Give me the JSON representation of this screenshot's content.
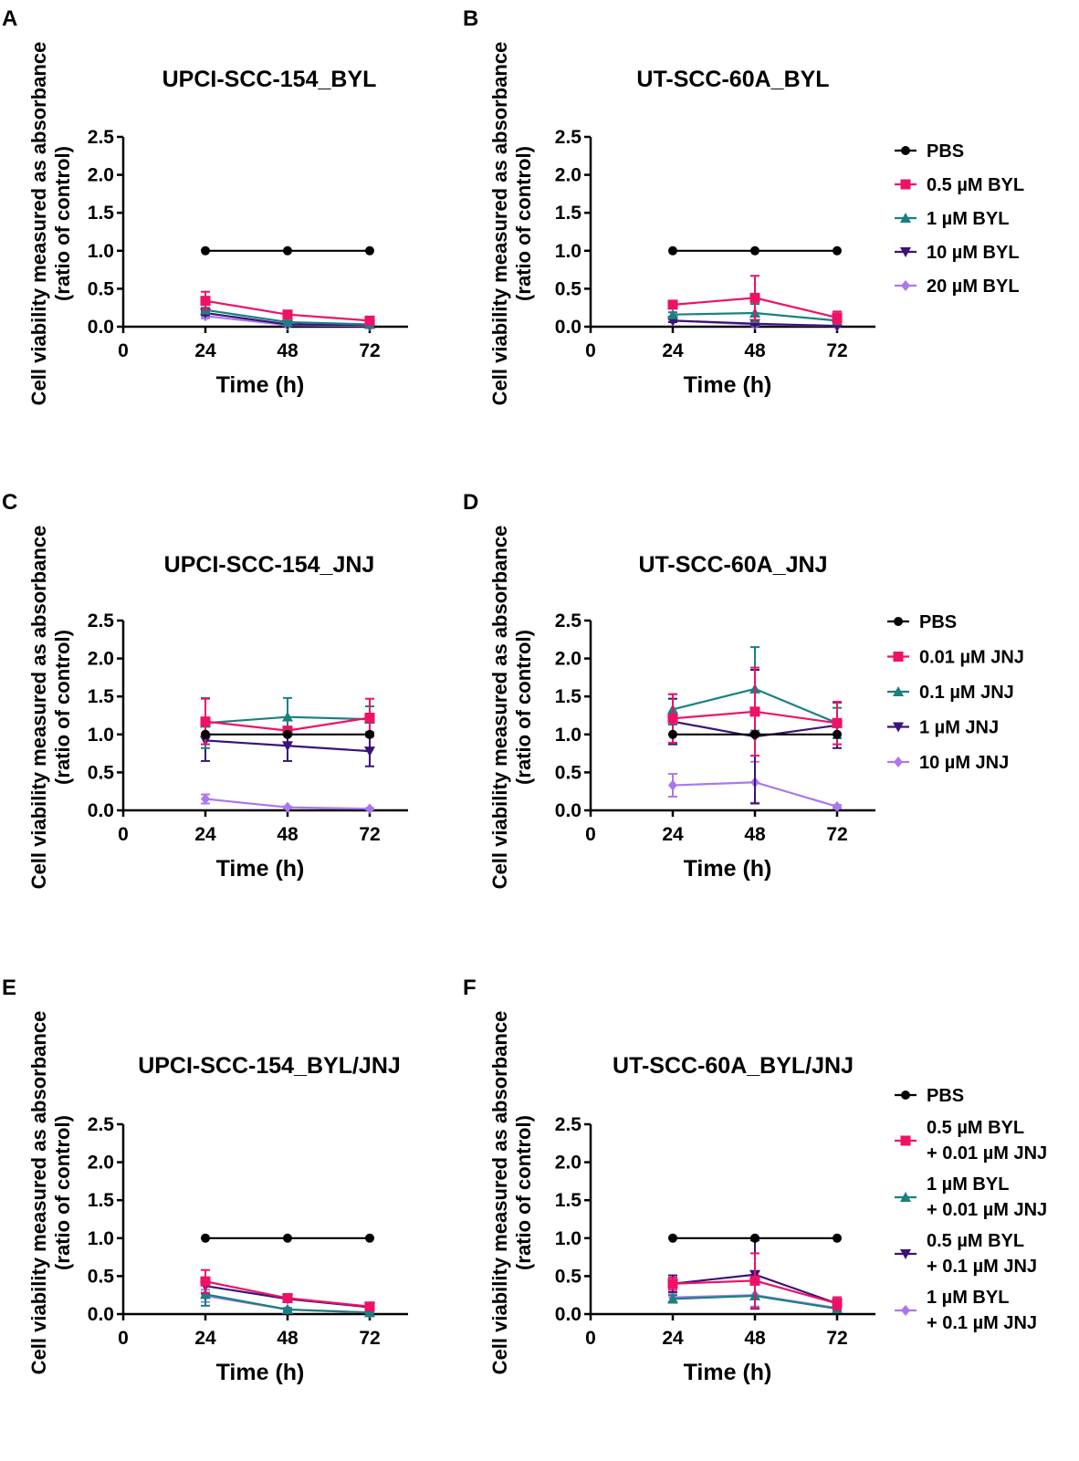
{
  "figure": {
    "ylabel_line1": "Cell viability measured as absorbance",
    "ylabel_line2": "(ratio of control)",
    "xlabel": "Time (h)",
    "x_ticks": [
      "0",
      "24",
      "48",
      "72"
    ],
    "y_ticks": [
      "0.0",
      "0.5",
      "1.0",
      "1.5",
      "2.0",
      "2.5"
    ]
  },
  "chart_data": [
    {
      "panel": "A",
      "type": "line",
      "title": "UPCI-SCC-154_BYL",
      "xlabel": "Time (h)",
      "ylabel": "Cell viability measured as absorbance (ratio of control)",
      "x": [
        24,
        48,
        72
      ],
      "xlim": [
        0,
        80
      ],
      "ylim": [
        0,
        2.5
      ],
      "series": [
        {
          "name": "PBS",
          "color": "#000000",
          "marker": "circle",
          "values": [
            1.0,
            1.0,
            1.0
          ],
          "errors": [
            0,
            0,
            0
          ]
        },
        {
          "name": "0.5 µM BYL",
          "color": "#ee1166",
          "marker": "square",
          "values": [
            0.34,
            0.16,
            0.08
          ],
          "errors": [
            0.12,
            0.02,
            0.02
          ]
        },
        {
          "name": "1 µM BYL",
          "color": "#1a8080",
          "marker": "triangle-up",
          "values": [
            0.22,
            0.06,
            0.03
          ],
          "errors": [
            0.03,
            0.01,
            0.01
          ]
        },
        {
          "name": "10 µM BYL",
          "color": "#3a1378",
          "marker": "triangle-down",
          "values": [
            0.18,
            0.03,
            0.02
          ],
          "errors": [
            0.03,
            0.01,
            0.01
          ]
        },
        {
          "name": "20 µM BYL",
          "color": "#aa77ee",
          "marker": "diamond",
          "values": [
            0.14,
            0.02,
            0.01
          ],
          "errors": [
            0.03,
            0.01,
            0.01
          ]
        }
      ],
      "legend": false
    },
    {
      "panel": "B",
      "type": "line",
      "title": "UT-SCC-60A_BYL",
      "xlabel": "Time (h)",
      "ylabel": "Cell viability measured as absorbance (ratio of control)",
      "x": [
        24,
        48,
        72
      ],
      "xlim": [
        0,
        80
      ],
      "ylim": [
        0,
        2.5
      ],
      "series": [
        {
          "name": "PBS",
          "color": "#000000",
          "marker": "circle",
          "values": [
            1.0,
            1.0,
            1.0
          ],
          "errors": [
            0,
            0,
            0
          ]
        },
        {
          "name": "0.5 µM BYL",
          "color": "#ee1166",
          "marker": "square",
          "values": [
            0.29,
            0.38,
            0.12
          ],
          "errors": [
            0.05,
            0.29,
            0.08
          ]
        },
        {
          "name": "1 µM BYL",
          "color": "#1a8080",
          "marker": "triangle-up",
          "values": [
            0.16,
            0.18,
            0.08
          ],
          "errors": [
            0.03,
            0.12,
            0.04
          ]
        },
        {
          "name": "10 µM BYL",
          "color": "#3a1378",
          "marker": "triangle-down",
          "values": [
            0.08,
            0.04,
            0.01
          ],
          "errors": [
            0.02,
            0.02,
            0.01
          ]
        },
        {
          "name": "20 µM BYL",
          "color": "#aa77ee",
          "marker": "diamond",
          "values": [
            0.08,
            0.03,
            0.01
          ],
          "errors": [
            0.02,
            0.02,
            0.01
          ]
        }
      ],
      "legend": true
    },
    {
      "panel": "C",
      "type": "line",
      "title": "UPCI-SCC-154_JNJ",
      "xlabel": "Time (h)",
      "ylabel": "Cell viability measured as absorbance (ratio of control)",
      "x": [
        24,
        48,
        72
      ],
      "xlim": [
        0,
        80
      ],
      "ylim": [
        0,
        2.5
      ],
      "series": [
        {
          "name": "PBS",
          "color": "#000000",
          "marker": "circle",
          "values": [
            1.0,
            1.0,
            1.0
          ],
          "errors": [
            0,
            0,
            0
          ]
        },
        {
          "name": "0.01 µM JNJ",
          "color": "#ee1166",
          "marker": "square",
          "values": [
            1.17,
            1.05,
            1.22
          ],
          "errors": [
            0.3,
            0.05,
            0.25
          ]
        },
        {
          "name": "0.1 µM JNJ",
          "color": "#1a8080",
          "marker": "triangle-up",
          "values": [
            1.15,
            1.23,
            1.2
          ],
          "errors": [
            0.33,
            0.25,
            0.17
          ]
        },
        {
          "name": "1 µM JNJ",
          "color": "#3a1378",
          "marker": "triangle-down",
          "values": [
            0.92,
            0.85,
            0.78
          ],
          "errors": [
            0.27,
            0.2,
            0.2
          ]
        },
        {
          "name": "10 µM JNJ",
          "color": "#aa77ee",
          "marker": "diamond",
          "values": [
            0.15,
            0.04,
            0.02
          ],
          "errors": [
            0.06,
            0.01,
            0.01
          ]
        }
      ],
      "legend": false
    },
    {
      "panel": "D",
      "type": "line",
      "title": "UT-SCC-60A_JNJ",
      "xlabel": "Time (h)",
      "ylabel": "Cell viability measured as absorbance (ratio of control)",
      "x": [
        24,
        48,
        72
      ],
      "xlim": [
        0,
        80
      ],
      "ylim": [
        0,
        2.5
      ],
      "series": [
        {
          "name": "PBS",
          "color": "#000000",
          "marker": "circle",
          "values": [
            1.0,
            1.0,
            1.0
          ],
          "errors": [
            0,
            0,
            0
          ]
        },
        {
          "name": "0.01 µM JNJ",
          "color": "#ee1166",
          "marker": "square",
          "values": [
            1.21,
            1.3,
            1.15
          ],
          "errors": [
            0.32,
            0.58,
            0.28
          ]
        },
        {
          "name": "0.1 µM JNJ",
          "color": "#1a8080",
          "marker": "triangle-up",
          "values": [
            1.33,
            1.6,
            1.15
          ],
          "errors": [
            0.2,
            0.55,
            0.2
          ]
        },
        {
          "name": "1 µM JNJ",
          "color": "#3a1378",
          "marker": "triangle-down",
          "values": [
            1.17,
            0.97,
            1.12
          ],
          "errors": [
            0.3,
            0.88,
            0.3
          ]
        },
        {
          "name": "10 µM JNJ",
          "color": "#aa77ee",
          "marker": "diamond",
          "values": [
            0.33,
            0.37,
            0.05
          ],
          "errors": [
            0.15,
            0.27,
            0.02
          ]
        }
      ],
      "legend": true
    },
    {
      "panel": "E",
      "type": "line",
      "title": "UPCI-SCC-154_BYL/JNJ",
      "xlabel": "Time (h)",
      "ylabel": "Cell viability measured as absorbance (ratio of control)",
      "x": [
        24,
        48,
        72
      ],
      "xlim": [
        0,
        80
      ],
      "ylim": [
        0,
        2.5
      ],
      "series": [
        {
          "name": "PBS",
          "color": "#000000",
          "marker": "circle",
          "values": [
            1.0,
            1.0,
            1.0
          ],
          "errors": [
            0,
            0,
            0
          ]
        },
        {
          "name": "0.5 µM BYL + 0.01 µM JNJ",
          "color": "#ee1166",
          "marker": "square",
          "values": [
            0.43,
            0.21,
            0.1
          ],
          "errors": [
            0.15,
            0.03,
            0.03
          ]
        },
        {
          "name": "1 µM BYL + 0.01 µM JNJ",
          "color": "#1a8080",
          "marker": "triangle-up",
          "values": [
            0.26,
            0.06,
            0.02
          ],
          "errors": [
            0.15,
            0.02,
            0.01
          ]
        },
        {
          "name": "0.5 µM BYL + 0.1 µM JNJ",
          "color": "#3a1378",
          "marker": "triangle-down",
          "values": [
            0.37,
            0.2,
            0.09
          ],
          "errors": [
            0.1,
            0.03,
            0.03
          ]
        },
        {
          "name": "1 µM BYL + 0.1 µM JNJ",
          "color": "#aa77ee",
          "marker": "diamond",
          "values": [
            0.24,
            0.06,
            0.02
          ],
          "errors": [
            0.08,
            0.02,
            0.01
          ]
        }
      ],
      "legend": false
    },
    {
      "panel": "F",
      "type": "line",
      "title": "UT-SCC-60A_BYL/JNJ",
      "xlabel": "Time (h)",
      "ylabel": "Cell viability measured as absorbance (ratio of control)",
      "x": [
        24,
        48,
        72
      ],
      "xlim": [
        0,
        80
      ],
      "ylim": [
        0,
        2.5
      ],
      "series": [
        {
          "name": "PBS",
          "color": "#000000",
          "marker": "circle",
          "values": [
            1.0,
            1.0,
            1.0
          ],
          "errors": [
            0,
            0,
            0
          ]
        },
        {
          "name": "0.5 µM BYL + 0.01 µM JNJ",
          "color": "#ee1166",
          "marker": "square",
          "values": [
            0.4,
            0.44,
            0.14
          ],
          "errors": [
            0.08,
            0.36,
            0.08
          ]
        },
        {
          "name": "1 µM BYL + 0.01 µM JNJ",
          "color": "#1a8080",
          "marker": "triangle-up",
          "values": [
            0.2,
            0.24,
            0.07
          ],
          "errors": [
            0.05,
            0.16,
            0.03
          ]
        },
        {
          "name": "0.5 µM BYL + 0.1 µM JNJ",
          "color": "#3a1378",
          "marker": "triangle-down",
          "values": [
            0.4,
            0.52,
            0.14
          ],
          "errors": [
            0.11,
            0.45,
            0.08
          ]
        },
        {
          "name": "1 µM BYL + 0.1 µM JNJ",
          "color": "#aa77ee",
          "marker": "diamond",
          "values": [
            0.22,
            0.25,
            0.08
          ],
          "errors": [
            0.06,
            0.15,
            0.03
          ]
        }
      ],
      "legend": true,
      "legend_lines": [
        [
          "PBS"
        ],
        [
          "0.5 µM BYL",
          "+ 0.01 µM JNJ"
        ],
        [
          "1 µM BYL",
          "+ 0.01 µM JNJ"
        ],
        [
          "0.5 µM BYL",
          "+ 0.1 µM JNJ"
        ],
        [
          "1 µM BYL",
          "+ 0.1 µM JNJ"
        ]
      ]
    }
  ]
}
